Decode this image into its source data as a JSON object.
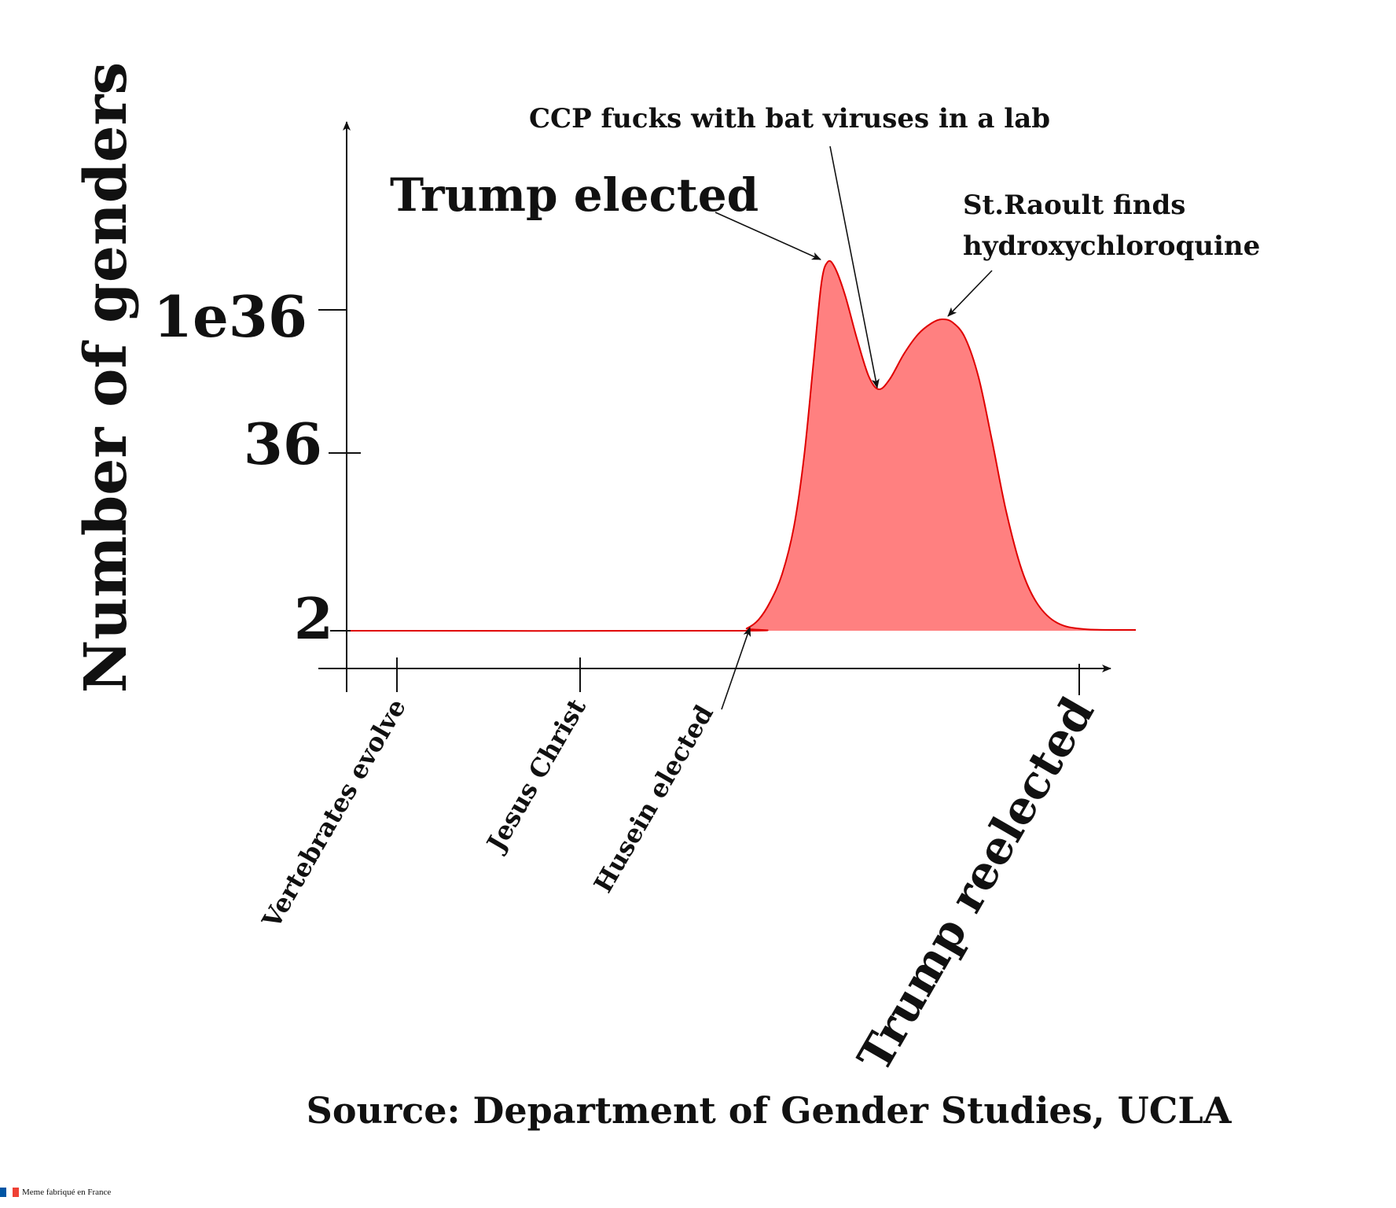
{
  "chart_data": {
    "type": "area",
    "ylabel": "Number of genders",
    "y_ticks": [
      "1e36",
      "36",
      "2"
    ],
    "x_ticks": [
      "Vertebrates evolve",
      "Jesus Christ",
      "Husein elected",
      "Trump reelected"
    ],
    "series": [
      {
        "x": [
          "Vertebrates evolve",
          "Jesus Christ",
          "Husein elected",
          "Trump elected",
          "CCP fucks with bat viruses in a lab",
          "St.Raoult finds hydroxychloroquine",
          "Trump reelected"
        ],
        "y_shown_on_axis": [
          "2",
          "2",
          "2",
          "above 1e36",
          "between 36 and 1e36",
          "about 1e36",
          "2"
        ]
      }
    ],
    "annotations": [
      "Trump elected",
      "CCP fucks with bat viruses in a lab",
      "St.Raoult finds hydroxychloroquine"
    ],
    "source": "Source: Department of Gender Studies, UCLA",
    "grid": false,
    "legend": "none"
  },
  "colors": {
    "fill": "#ff8080",
    "line": "#e00000",
    "axis": "#111111"
  },
  "watermark": {
    "text": "Meme fabriqué en France",
    "flag_colors": [
      "#0055a4",
      "#ffffff",
      "#ef4135"
    ]
  }
}
